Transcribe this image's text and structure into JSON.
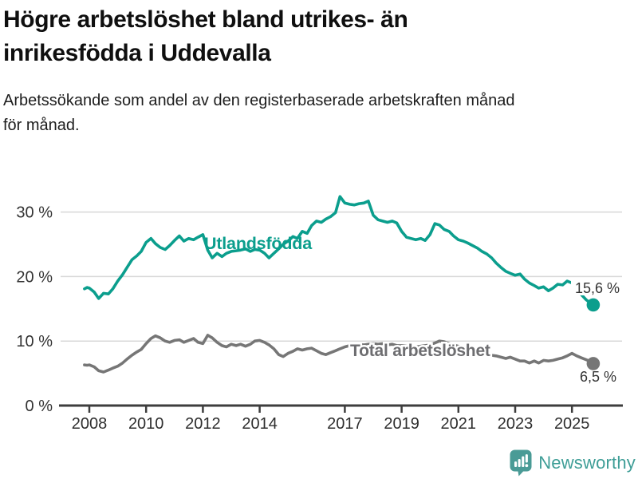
{
  "header": {
    "title_lines": [
      "Högre arbetslöshet bland utrikes- än",
      "inrikesfödda i Uddevalla"
    ],
    "subtitle_lines": [
      "Arbetssökande som andel av den registerbaserade arbetskraften månad",
      "för månad."
    ]
  },
  "footer": {
    "brand": "Newsworthy",
    "logo_icon": "bar-chart-speech-bubble-icon"
  },
  "colors": {
    "accent_teal": "#0b9e8d",
    "series_gray": "#767676",
    "label_gray": "#6d6d70",
    "annotation_text": "#333333",
    "axis": "#3d3d3d",
    "grid": "#d8d8d8",
    "halo": "#ffffff",
    "logo_teal": "#4a9b96",
    "logo_text_teal": "#3f9e97",
    "title_text": "#0f0f0f",
    "body_text": "#1d1d1d"
  },
  "chart_data": {
    "type": "line",
    "title": "Högre arbetslöshet bland utrikes- än inrikesfödda i Uddevalla",
    "subtitle": "Arbetssökande som andel av den registerbaserade arbetskraften månad för månad.",
    "unit": "%",
    "xlabel": "",
    "ylabel": "",
    "x_ticks": [
      2008,
      2010,
      2012,
      2014,
      2017,
      2019,
      2021,
      2023,
      2025
    ],
    "x_tick_labels": [
      "2008",
      "2010",
      "2012",
      "2014",
      "2017",
      "2019",
      "2021",
      "2023",
      "2025"
    ],
    "y_ticks": [
      0,
      10,
      20,
      30
    ],
    "y_tick_labels": [
      "0 %",
      "10 %",
      "20 %",
      "30 %"
    ],
    "xlim": [
      2007.8,
      2026.3
    ],
    "ylim": [
      0,
      33.5
    ],
    "grid": "horizontal-only",
    "legend_position": "inline-labels-on-line",
    "series": [
      {
        "name": "Utlandsfödda",
        "color": "#0b9e8d",
        "end_value": 15.6,
        "end_label": "15,6 %",
        "points": [
          [
            2007.83,
            18.1
          ],
          [
            2007.92,
            18.3
          ],
          [
            2008.0,
            18.2
          ],
          [
            2008.17,
            17.6
          ],
          [
            2008.33,
            16.6
          ],
          [
            2008.5,
            17.4
          ],
          [
            2008.67,
            17.3
          ],
          [
            2008.83,
            18.1
          ],
          [
            2009.0,
            19.3
          ],
          [
            2009.17,
            20.3
          ],
          [
            2009.33,
            21.4
          ],
          [
            2009.5,
            22.6
          ],
          [
            2009.67,
            23.2
          ],
          [
            2009.83,
            23.9
          ],
          [
            2010.0,
            25.3
          ],
          [
            2010.17,
            25.9
          ],
          [
            2010.33,
            25.1
          ],
          [
            2010.5,
            24.5
          ],
          [
            2010.67,
            24.2
          ],
          [
            2010.83,
            24.8
          ],
          [
            2011.0,
            25.6
          ],
          [
            2011.17,
            26.3
          ],
          [
            2011.33,
            25.5
          ],
          [
            2011.5,
            25.9
          ],
          [
            2011.67,
            25.7
          ],
          [
            2011.83,
            26.1
          ],
          [
            2012.0,
            26.5
          ],
          [
            2012.17,
            24.1
          ],
          [
            2012.33,
            22.9
          ],
          [
            2012.5,
            23.6
          ],
          [
            2012.67,
            23.1
          ],
          [
            2012.83,
            23.6
          ],
          [
            2013.0,
            23.9
          ],
          [
            2013.17,
            24.0
          ],
          [
            2013.33,
            24.1
          ],
          [
            2013.5,
            24.3
          ],
          [
            2013.67,
            23.9
          ],
          [
            2013.83,
            24.2
          ],
          [
            2014.0,
            24.1
          ],
          [
            2014.17,
            23.6
          ],
          [
            2014.33,
            22.9
          ],
          [
            2014.5,
            23.6
          ],
          [
            2014.67,
            24.3
          ],
          [
            2014.83,
            25.0
          ],
          [
            2015.0,
            25.5
          ],
          [
            2015.17,
            26.2
          ],
          [
            2015.33,
            25.9
          ],
          [
            2015.5,
            27.0
          ],
          [
            2015.67,
            26.7
          ],
          [
            2015.83,
            27.9
          ],
          [
            2016.0,
            28.6
          ],
          [
            2016.17,
            28.4
          ],
          [
            2016.33,
            28.9
          ],
          [
            2016.5,
            29.3
          ],
          [
            2016.67,
            29.9
          ],
          [
            2016.83,
            32.4
          ],
          [
            2017.0,
            31.4
          ],
          [
            2017.17,
            31.2
          ],
          [
            2017.33,
            31.1
          ],
          [
            2017.5,
            31.3
          ],
          [
            2017.67,
            31.4
          ],
          [
            2017.83,
            31.7
          ],
          [
            2018.0,
            29.5
          ],
          [
            2018.17,
            28.8
          ],
          [
            2018.33,
            28.6
          ],
          [
            2018.5,
            28.4
          ],
          [
            2018.67,
            28.6
          ],
          [
            2018.83,
            28.3
          ],
          [
            2019.0,
            27.0
          ],
          [
            2019.17,
            26.1
          ],
          [
            2019.33,
            25.9
          ],
          [
            2019.5,
            25.7
          ],
          [
            2019.67,
            25.9
          ],
          [
            2019.83,
            25.6
          ],
          [
            2020.0,
            26.5
          ],
          [
            2020.17,
            28.2
          ],
          [
            2020.33,
            28.0
          ],
          [
            2020.5,
            27.3
          ],
          [
            2020.67,
            27.0
          ],
          [
            2020.83,
            26.3
          ],
          [
            2021.0,
            25.7
          ],
          [
            2021.17,
            25.5
          ],
          [
            2021.33,
            25.2
          ],
          [
            2021.5,
            24.8
          ],
          [
            2021.67,
            24.4
          ],
          [
            2021.83,
            23.9
          ],
          [
            2022.0,
            23.5
          ],
          [
            2022.17,
            22.9
          ],
          [
            2022.33,
            22.1
          ],
          [
            2022.5,
            21.4
          ],
          [
            2022.67,
            20.8
          ],
          [
            2022.83,
            20.5
          ],
          [
            2023.0,
            20.2
          ],
          [
            2023.17,
            20.4
          ],
          [
            2023.33,
            19.6
          ],
          [
            2023.5,
            19.0
          ],
          [
            2023.67,
            18.6
          ],
          [
            2023.83,
            18.2
          ],
          [
            2024.0,
            18.4
          ],
          [
            2024.17,
            17.8
          ],
          [
            2024.33,
            18.2
          ],
          [
            2024.5,
            18.8
          ],
          [
            2024.67,
            18.7
          ],
          [
            2024.83,
            19.3
          ],
          [
            2025.0,
            19.0
          ],
          [
            2025.17,
            18.1
          ],
          [
            2025.33,
            17.2
          ],
          [
            2025.5,
            16.4
          ],
          [
            2025.67,
            15.8
          ],
          [
            2025.75,
            15.6
          ]
        ]
      },
      {
        "name": "Total arbetslöshet",
        "color": "#767676",
        "end_value": 6.5,
        "end_label": "6,5 %",
        "points": [
          [
            2007.83,
            6.3
          ],
          [
            2007.92,
            6.25
          ],
          [
            2008.0,
            6.3
          ],
          [
            2008.17,
            6.0
          ],
          [
            2008.33,
            5.4
          ],
          [
            2008.5,
            5.2
          ],
          [
            2008.67,
            5.5
          ],
          [
            2008.83,
            5.8
          ],
          [
            2009.0,
            6.1
          ],
          [
            2009.17,
            6.6
          ],
          [
            2009.33,
            7.2
          ],
          [
            2009.5,
            7.8
          ],
          [
            2009.67,
            8.3
          ],
          [
            2009.83,
            8.7
          ],
          [
            2010.0,
            9.6
          ],
          [
            2010.17,
            10.4
          ],
          [
            2010.33,
            10.8
          ],
          [
            2010.5,
            10.5
          ],
          [
            2010.67,
            10.0
          ],
          [
            2010.83,
            9.8
          ],
          [
            2011.0,
            10.1
          ],
          [
            2011.17,
            10.2
          ],
          [
            2011.33,
            9.8
          ],
          [
            2011.5,
            10.1
          ],
          [
            2011.67,
            10.4
          ],
          [
            2011.83,
            9.8
          ],
          [
            2012.0,
            9.6
          ],
          [
            2012.17,
            10.9
          ],
          [
            2012.33,
            10.5
          ],
          [
            2012.5,
            9.8
          ],
          [
            2012.67,
            9.3
          ],
          [
            2012.83,
            9.1
          ],
          [
            2013.0,
            9.5
          ],
          [
            2013.17,
            9.3
          ],
          [
            2013.33,
            9.5
          ],
          [
            2013.5,
            9.2
          ],
          [
            2013.67,
            9.5
          ],
          [
            2013.83,
            10.0
          ],
          [
            2014.0,
            10.1
          ],
          [
            2014.17,
            9.8
          ],
          [
            2014.33,
            9.4
          ],
          [
            2014.5,
            8.8
          ],
          [
            2014.67,
            7.9
          ],
          [
            2014.83,
            7.6
          ],
          [
            2015.0,
            8.1
          ],
          [
            2015.17,
            8.4
          ],
          [
            2015.33,
            8.8
          ],
          [
            2015.5,
            8.6
          ],
          [
            2015.67,
            8.8
          ],
          [
            2015.83,
            8.9
          ],
          [
            2016.0,
            8.5
          ],
          [
            2016.17,
            8.1
          ],
          [
            2016.33,
            7.9
          ],
          [
            2016.5,
            8.2
          ],
          [
            2016.67,
            8.5
          ],
          [
            2016.83,
            8.8
          ],
          [
            2017.0,
            9.1
          ],
          [
            2017.17,
            9.3
          ],
          [
            2017.33,
            9.4
          ],
          [
            2017.5,
            9.5
          ],
          [
            2017.67,
            9.4
          ],
          [
            2017.83,
            9.5
          ],
          [
            2018.0,
            9.6
          ],
          [
            2018.17,
            9.5
          ],
          [
            2018.33,
            9.6
          ],
          [
            2018.5,
            9.4
          ],
          [
            2018.67,
            9.5
          ],
          [
            2018.83,
            9.3
          ],
          [
            2019.0,
            9.3
          ],
          [
            2019.17,
            9.2
          ],
          [
            2019.33,
            9.1
          ],
          [
            2019.5,
            9.1
          ],
          [
            2019.67,
            9.2
          ],
          [
            2019.83,
            9.3
          ],
          [
            2020.0,
            9.4
          ],
          [
            2020.17,
            9.7
          ],
          [
            2020.33,
            10.0
          ],
          [
            2020.5,
            9.9
          ],
          [
            2020.67,
            9.6
          ],
          [
            2020.83,
            9.4
          ],
          [
            2021.0,
            9.2
          ],
          [
            2021.17,
            9.0
          ],
          [
            2021.33,
            8.8
          ],
          [
            2021.5,
            8.6
          ],
          [
            2021.67,
            8.4
          ],
          [
            2021.83,
            8.2
          ],
          [
            2022.0,
            8.0
          ],
          [
            2022.17,
            7.8
          ],
          [
            2022.33,
            7.7
          ],
          [
            2022.5,
            7.5
          ],
          [
            2022.67,
            7.3
          ],
          [
            2022.83,
            7.5
          ],
          [
            2023.0,
            7.2
          ],
          [
            2023.17,
            6.9
          ],
          [
            2023.33,
            6.9
          ],
          [
            2023.5,
            6.6
          ],
          [
            2023.67,
            6.9
          ],
          [
            2023.83,
            6.6
          ],
          [
            2024.0,
            7.0
          ],
          [
            2024.17,
            6.9
          ],
          [
            2024.33,
            7.0
          ],
          [
            2024.5,
            7.2
          ],
          [
            2024.67,
            7.4
          ],
          [
            2024.83,
            7.7
          ],
          [
            2025.0,
            8.1
          ],
          [
            2025.17,
            7.7
          ],
          [
            2025.33,
            7.4
          ],
          [
            2025.5,
            7.1
          ],
          [
            2025.67,
            6.8
          ],
          [
            2025.75,
            6.5
          ]
        ]
      }
    ]
  }
}
